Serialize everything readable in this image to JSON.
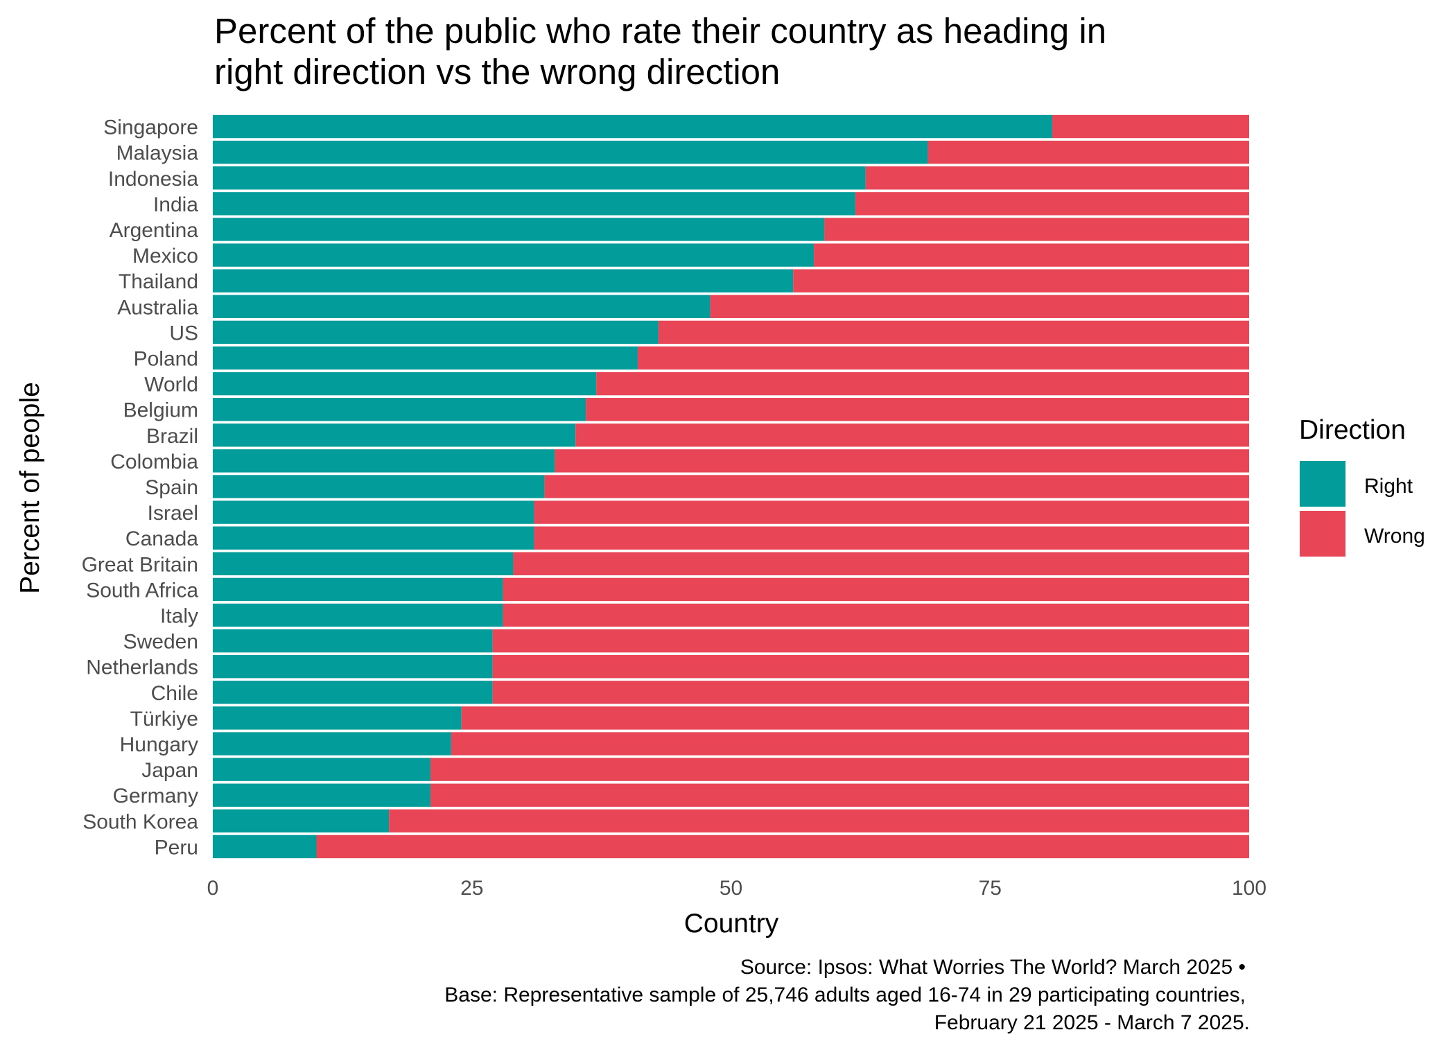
{
  "chart_data": {
    "type": "bar",
    "orientation": "horizontal",
    "stacked": true,
    "title": "Percent of the public who rate their country as heading in right direction vs the wrong direction",
    "title_lines": [
      "Percent of the public who rate their country as heading in",
      "right direction vs the wrong direction"
    ],
    "xlabel": "Country",
    "ylabel": "Percent of people",
    "xlim": [
      0,
      100
    ],
    "x_ticks": [
      0,
      25,
      50,
      75,
      100
    ],
    "grid": false,
    "legend": {
      "title": "Direction",
      "placement": "right",
      "entries": [
        "Right",
        "Wrong"
      ]
    },
    "categories": [
      "Singapore",
      "Malaysia",
      "Indonesia",
      "India",
      "Argentina",
      "Mexico",
      "Thailand",
      "Australia",
      "US",
      "Poland",
      "World",
      "Belgium",
      "Brazil",
      "Colombia",
      "Spain",
      "Israel",
      "Canada",
      "Great Britain",
      "South Africa",
      "Italy",
      "Sweden",
      "Netherlands",
      "Chile",
      "Türkiye",
      "Hungary",
      "Japan",
      "Germany",
      "South Korea",
      "Peru"
    ],
    "series": [
      {
        "name": "Right",
        "color": "#029c9b",
        "values": [
          81,
          69,
          63,
          62,
          59,
          58,
          56,
          48,
          43,
          41,
          37,
          36,
          35,
          33,
          32,
          31,
          31,
          29,
          28,
          28,
          27,
          27,
          27,
          24,
          23,
          21,
          21,
          17,
          10
        ]
      },
      {
        "name": "Wrong",
        "color": "#e84656",
        "values": [
          19,
          31,
          37,
          38,
          41,
          42,
          44,
          52,
          57,
          59,
          63,
          64,
          65,
          67,
          68,
          69,
          69,
          71,
          72,
          72,
          73,
          73,
          73,
          76,
          77,
          79,
          79,
          83,
          90
        ]
      }
    ],
    "caption_lines": [
      "Source: Ipsos: What Worries The World? March 2025 •",
      "Base: Representative sample of 25,746 adults aged 16-74 in 29 participating countries,",
      "February 21 2025 - March 7 2025."
    ]
  }
}
